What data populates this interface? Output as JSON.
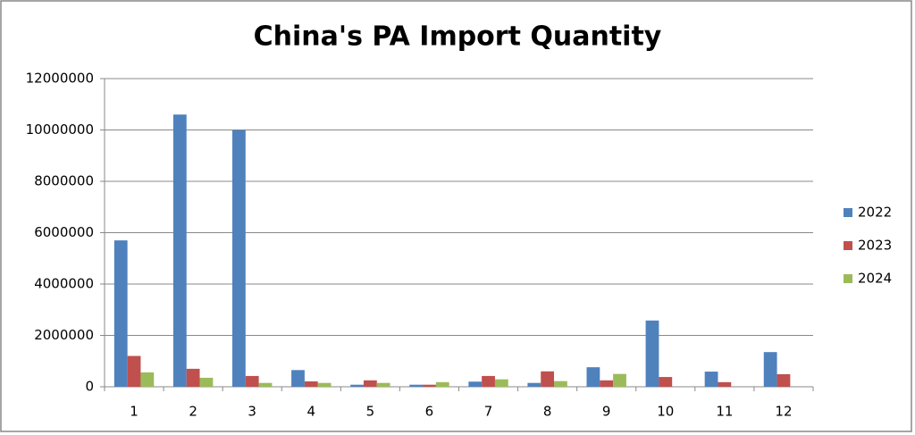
{
  "chart_data": {
    "type": "bar",
    "title": "China's PA Import Quantity",
    "categories": [
      "1",
      "2",
      "3",
      "4",
      "5",
      "6",
      "7",
      "8",
      "9",
      "10",
      "11",
      "12"
    ],
    "series": [
      {
        "name": "2022",
        "color": "#4f81bd",
        "values": [
          5700000,
          10600000,
          10000000,
          650000,
          80000,
          80000,
          200000,
          150000,
          760000,
          2580000,
          590000,
          1350000
        ]
      },
      {
        "name": "2023",
        "color": "#c0504d",
        "values": [
          1200000,
          700000,
          420000,
          210000,
          250000,
          80000,
          420000,
          600000,
          250000,
          380000,
          180000,
          490000
        ]
      },
      {
        "name": "2024",
        "color": "#9bbb59",
        "values": [
          560000,
          350000,
          150000,
          150000,
          150000,
          180000,
          290000,
          220000,
          500000,
          null,
          null,
          null
        ]
      }
    ],
    "ylim": [
      0,
      12000000
    ],
    "yticks": [
      0,
      2000000,
      4000000,
      6000000,
      8000000,
      10000000,
      12000000
    ],
    "grid": true,
    "legend_position": "right"
  }
}
